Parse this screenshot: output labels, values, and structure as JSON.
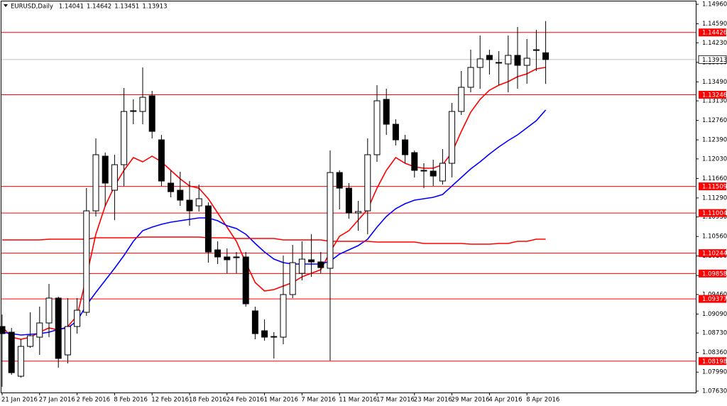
{
  "chart_data": {
    "type": "candlestick",
    "title": "EURUSD,Daily",
    "categories": [
      "21 Jan 2016",
      null,
      null,
      null,
      "27 Jan 2016",
      null,
      null,
      null,
      "2 Feb 2016",
      null,
      null,
      null,
      "8 Feb 2016",
      null,
      null,
      null,
      "12 Feb 2016",
      null,
      null,
      null,
      "18 Feb 2016",
      null,
      null,
      null,
      "24 Feb 2016",
      null,
      null,
      null,
      "1 Mar 2016",
      null,
      null,
      null,
      "7 Mar 2016",
      null,
      null,
      null,
      "11 Mar 2016",
      null,
      null,
      null,
      "17 Mar 2016",
      null,
      null,
      null,
      "23 Mar 2016",
      null,
      null,
      null,
      "29 Mar 2016",
      null,
      null,
      null,
      "4 Apr 2016",
      null,
      null,
      null,
      "8 Apr 2016",
      null,
      null
    ],
    "open": [
      1.08854,
      1.08746,
      1.07912,
      1.08477,
      1.08652,
      1.08921,
      1.09392,
      1.08316,
      1.08854,
      1.09123,
      1.11046,
      1.12082,
      1.11436,
      1.1192,
      1.12929,
      1.12929,
      1.13225,
      1.12391,
      1.11571,
      1.11436,
      1.11248,
      1.1114,
      1.1114,
      1.10306,
      1.10172,
      1.10172,
      1.10172,
      1.0915,
      1.08773,
      1.08665,
      1.08652,
      1.09459,
      1.09862,
      1.10118,
      1.10078,
      1.09957,
      1.11772,
      1.11476,
      1.11006,
      1.11046,
      1.12109,
      1.13158,
      1.12687,
      1.12391,
      1.12149,
      1.11813,
      1.11799,
      1.11611,
      1.11947,
      1.12929,
      1.13387,
      1.13763,
      1.13992,
      1.13858,
      1.1383,
      1.13992,
      1.13803,
      1.14099,
      1.14041
    ],
    "high": [
      1.09083,
      1.08827,
      1.08612,
      1.09123,
      1.0923,
      1.09661,
      1.09419,
      1.09392,
      1.09392,
      1.11476,
      1.12418,
      1.12149,
      1.12109,
      1.13373,
      1.13158,
      1.13763,
      1.13319,
      1.12485,
      1.11813,
      1.11786,
      1.11611,
      1.11544,
      1.11207,
      1.10467,
      1.10333,
      1.10266,
      1.10266,
      1.0923,
      1.08988,
      1.08746,
      1.10199,
      1.104,
      1.10467,
      1.10602,
      1.10266,
      1.12189,
      1.11813,
      1.11571,
      1.11234,
      1.12418,
      1.13427,
      1.1336,
      1.12781,
      1.12485,
      1.12189,
      1.11947,
      1.12014,
      1.12216,
      1.1309,
      1.13696,
      1.14099,
      1.14368,
      1.14099,
      1.14072,
      1.14368,
      1.1453,
      1.14301,
      1.14476,
      1.14642
    ],
    "low": [
      1.07711,
      1.07939,
      1.07885,
      1.0845,
      1.08316,
      1.08652,
      1.08074,
      1.08154,
      1.08719,
      1.09056,
      1.10939,
      1.1114,
      1.10871,
      1.11517,
      1.12687,
      1.12687,
      1.12418,
      1.11517,
      1.11302,
      1.1114,
      1.10764,
      1.11033,
      1.10064,
      1.10037,
      1.09862,
      1.09862,
      1.0923,
      1.08612,
      1.08585,
      1.08249,
      1.08518,
      1.09392,
      1.09728,
      1.09795,
      1.09862,
      1.08208,
      1.11073,
      1.10898,
      1.10669,
      1.10602,
      1.11974,
      1.12485,
      1.12284,
      1.11947,
      1.11678,
      1.11477,
      1.11517,
      1.11544,
      1.11678,
      1.12862,
      1.13292,
      1.1336,
      1.13629,
      1.13427,
      1.13292,
      1.1336,
      1.13454,
      1.13696,
      1.13451
    ],
    "close": [
      1.08719,
      1.07979,
      1.08477,
      1.08679,
      1.08921,
      1.09392,
      1.08249,
      1.08854,
      1.09163,
      1.11046,
      1.12109,
      1.11571,
      1.1192,
      1.12929,
      1.12943,
      1.13198,
      1.12552,
      1.11611,
      1.11409,
      1.11248,
      1.11046,
      1.11275,
      1.10266,
      1.10172,
      1.10118,
      1.10158,
      1.09284,
      1.08719,
      1.08652,
      1.08665,
      1.09459,
      1.10064,
      1.10131,
      1.10078,
      1.0997,
      1.11772,
      1.11476,
      1.11006,
      1.11033,
      1.12109,
      1.13131,
      1.12687,
      1.12391,
      1.12109,
      1.11813,
      1.11799,
      1.11705,
      1.11947,
      1.12929,
      1.13387,
      1.13763,
      1.13925,
      1.13911,
      1.13858,
      1.13992,
      1.13803,
      1.13938,
      1.14085,
      1.13913
    ],
    "bull_color": "#ffffff",
    "bear_color": "#000000",
    "series": [
      {
        "color": "#ff0000",
        "values": [
          1.08854,
          1.08652,
          1.08612,
          1.08652,
          1.08746,
          1.08827,
          1.08786,
          1.08854,
          1.09055,
          1.09795,
          1.10602,
          1.1114,
          1.11517,
          1.11813,
          1.12055,
          1.11974,
          1.12082,
          1.11974,
          1.11813,
          1.11651,
          1.11517,
          1.11476,
          1.11275,
          1.11006,
          1.10737,
          1.10468,
          1.10064,
          1.09688,
          1.09526,
          1.09553,
          1.0962,
          1.09688,
          1.09795,
          1.09862,
          1.0993,
          1.10266,
          1.10562,
          1.10669,
          1.10871,
          1.11073,
          1.11476,
          1.11813,
          1.12055,
          1.11947,
          1.1188,
          1.11853,
          1.11853,
          1.1192,
          1.12149,
          1.12552,
          1.12916,
          1.13158,
          1.13332,
          1.13427,
          1.13494,
          1.13588,
          1.13642,
          1.13736,
          1.13763
        ]
      },
      {
        "color": "#0000ff",
        "values": [
          1.08746,
          1.08719,
          1.08692,
          1.08706,
          1.08719,
          1.08746,
          1.088,
          1.08827,
          1.08961,
          1.09257,
          1.09499,
          1.09728,
          1.09957,
          1.10199,
          1.10468,
          1.10669,
          1.10737,
          1.10791,
          1.10831,
          1.10858,
          1.10885,
          1.10912,
          1.10912,
          1.10858,
          1.10764,
          1.1071,
          1.10602,
          1.10427,
          1.10266,
          1.10131,
          1.10064,
          1.10037,
          1.10037,
          1.10037,
          1.10037,
          1.10091,
          1.10226,
          1.10306,
          1.10387,
          1.10508,
          1.10737,
          1.10938,
          1.11086,
          1.11181,
          1.11248,
          1.11275,
          1.11302,
          1.11355,
          1.11517,
          1.11678,
          1.1184,
          1.11974,
          1.12122,
          1.12257,
          1.12378,
          1.12485,
          1.1262,
          1.12754,
          1.12956
        ]
      },
      {
        "color": "#ff0000",
        "values": [
          1.10495,
          1.10495,
          1.10495,
          1.10495,
          1.10495,
          1.10508,
          1.10508,
          1.10508,
          1.10508,
          1.10508,
          1.10535,
          1.10535,
          1.10535,
          1.10535,
          1.10535,
          1.10548,
          1.10548,
          1.10548,
          1.10548,
          1.10548,
          1.10548,
          1.10548,
          1.10535,
          1.10535,
          1.10535,
          1.10522,
          1.10522,
          1.10522,
          1.10522,
          1.10522,
          1.10495,
          1.10495,
          1.10495,
          1.10495,
          1.10495,
          1.10468,
          1.10468,
          1.10468,
          1.10468,
          1.10468,
          1.10454,
          1.10454,
          1.10454,
          1.10454,
          1.10454,
          1.10427,
          1.10427,
          1.10427,
          1.10427,
          1.10427,
          1.10414,
          1.10414,
          1.10414,
          1.10427,
          1.10427,
          1.10468,
          1.10468,
          1.10508,
          1.10508
        ]
      }
    ],
    "levels": [
      1.14426,
      1.13246,
      1.11509,
      1.11004,
      1.10244,
      1.09858,
      1.09377,
      1.08198
    ],
    "level_color": "#ff0000",
    "ylim": [
      1.07603,
      1.15041
    ],
    "yticks": [
      {
        "value": 1.1496,
        "label": "1.14960"
      },
      {
        "value": 1.1459,
        "label": "1.14590"
      },
      {
        "value": 1.1423,
        "label": "1.14230"
      },
      {
        "value": 1.1386,
        "label": "1.13860"
      },
      {
        "value": 1.1349,
        "label": "1.13490"
      },
      {
        "value": 1.1313,
        "label": "1.13130"
      },
      {
        "value": 1.1276,
        "label": "1.12760"
      },
      {
        "value": 1.1239,
        "label": "1.12390"
      },
      {
        "value": 1.1203,
        "label": "1.12030"
      },
      {
        "value": 1.1166,
        "label": "1.11660"
      },
      {
        "value": 1.1129,
        "label": "1.11290"
      },
      {
        "value": 1.1093,
        "label": "1.10930"
      },
      {
        "value": 1.1056,
        "label": "1.10560"
      },
      {
        "value": 1.1019,
        "label": "1.10190"
      },
      {
        "value": 1.0982,
        "label": "1.09820"
      },
      {
        "value": 1.0946,
        "label": "1.09460"
      },
      {
        "value": 1.0909,
        "label": "1.09090"
      },
      {
        "value": 1.0873,
        "label": "1.08730"
      },
      {
        "value": 1.0836,
        "label": "1.08360"
      },
      {
        "value": 1.0799,
        "label": "1.07990"
      },
      {
        "value": 1.0763,
        "label": "1.07630"
      }
    ],
    "grid": false
  }
}
